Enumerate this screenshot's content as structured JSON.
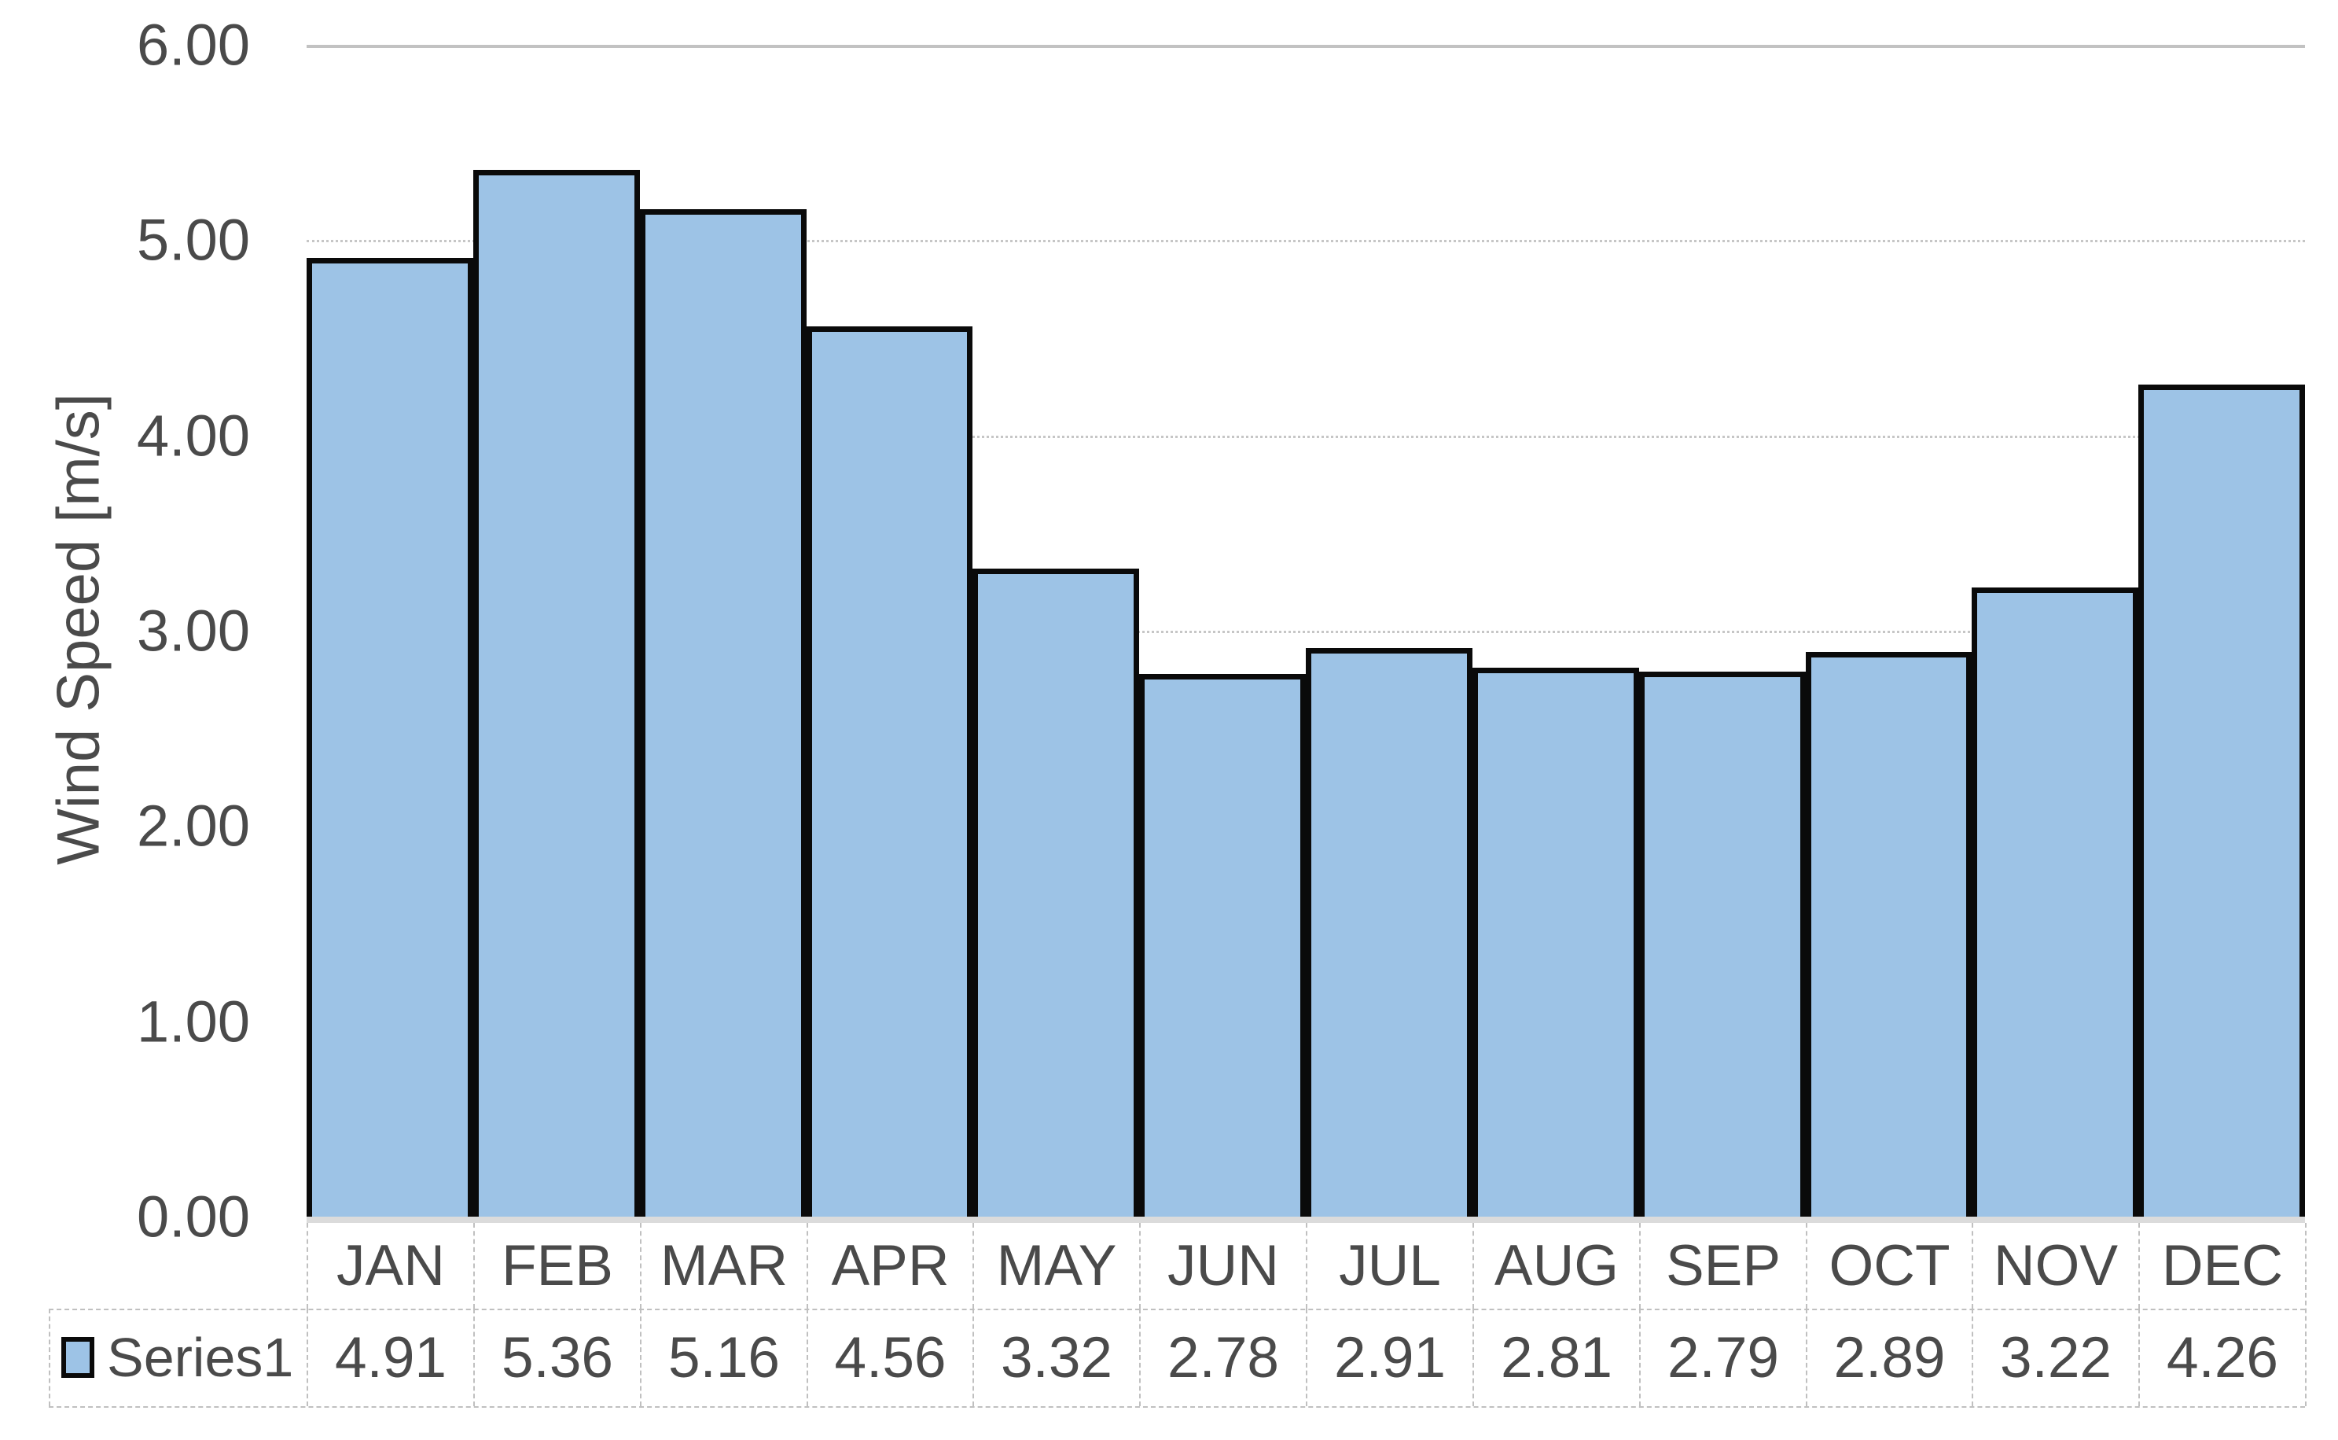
{
  "chart_data": {
    "type": "bar",
    "title": "",
    "xlabel": "",
    "ylabel": "Wind Speed [m/s]",
    "categories": [
      "JAN",
      "FEB",
      "MAR",
      "APR",
      "MAY",
      "JUN",
      "JUL",
      "AUG",
      "SEP",
      "OCT",
      "NOV",
      "DEC"
    ],
    "series": [
      {
        "name": "Series1",
        "values": [
          4.91,
          5.36,
          5.16,
          4.56,
          3.32,
          2.78,
          2.91,
          2.81,
          2.79,
          2.89,
          3.22,
          4.26
        ]
      }
    ],
    "ylim": [
      0,
      6
    ],
    "ytick_labels": [
      "0.00",
      "1.00",
      "2.00",
      "3.00",
      "4.00",
      "5.00",
      "6.00"
    ],
    "grid": "horizontal-major",
    "legend_position": "data-table-left",
    "data_table_shown": true,
    "colors": {
      "bar_fill": "#9dc3e6",
      "bar_border": "#0a0a0a",
      "gridline": "#c6c6c6",
      "axis_line": "#dbdbdb",
      "table_border": "#c0c0c0",
      "text": "#4a4a4a",
      "background": "#ffffff"
    }
  }
}
